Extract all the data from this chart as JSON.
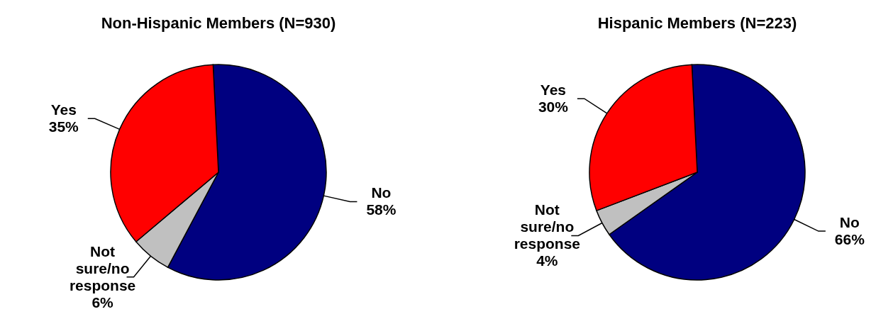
{
  "chart_data": [
    {
      "type": "pie",
      "title": "Non-Hispanic Members (N=930)",
      "categories": [
        "No",
        "Not sure/no response",
        "Yes"
      ],
      "values": [
        58,
        6,
        35
      ],
      "value_labels": [
        "58%",
        "6%",
        "35%"
      ],
      "colors": [
        "#000080",
        "#c0c0c0",
        "#ff0000"
      ],
      "legend": false
    },
    {
      "type": "pie",
      "title": "Hispanic Members (N=223)",
      "categories": [
        "No",
        "Not sure/no response",
        "Yes"
      ],
      "values": [
        66,
        4,
        30
      ],
      "value_labels": [
        "66%",
        "4%",
        "30%"
      ],
      "colors": [
        "#000080",
        "#c0c0c0",
        "#ff0000"
      ],
      "legend": false
    }
  ]
}
